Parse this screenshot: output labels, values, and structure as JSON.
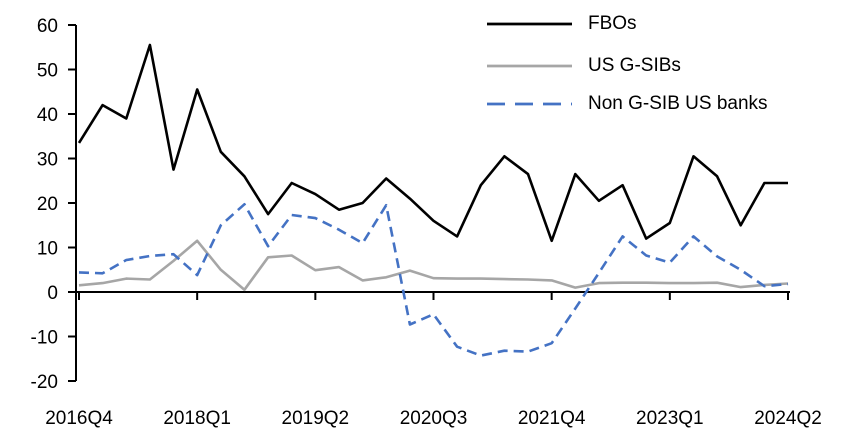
{
  "chart_data": {
    "type": "line",
    "title": "",
    "xlabel": "",
    "ylabel": "",
    "grid": false,
    "ylim": [
      -20,
      60
    ],
    "y_ticks": [
      60,
      50,
      40,
      30,
      20,
      10,
      0,
      -10,
      -20
    ],
    "x_tick_labels": [
      "2016Q4",
      "2018Q1",
      "2019Q2",
      "2020Q3",
      "2021Q4",
      "2023Q1",
      "2024Q2"
    ],
    "x_tick_indices": [
      0,
      5,
      10,
      15,
      20,
      25,
      30
    ],
    "legend_position": "top-right",
    "categories": [
      "2016Q4",
      "2017Q1",
      "2017Q2",
      "2017Q3",
      "2017Q4",
      "2018Q1",
      "2018Q2",
      "2018Q3",
      "2018Q4",
      "2019Q1",
      "2019Q2",
      "2019Q3",
      "2019Q4",
      "2020Q1",
      "2020Q2",
      "2020Q3",
      "2020Q4",
      "2021Q1",
      "2021Q2",
      "2021Q3",
      "2021Q4",
      "2022Q1",
      "2022Q2",
      "2022Q3",
      "2022Q4",
      "2023Q1",
      "2023Q2",
      "2023Q3",
      "2023Q4",
      "2024Q1",
      "2024Q2"
    ],
    "series": [
      {
        "name": "FBOs",
        "color": "#000000",
        "style": "solid",
        "values": [
          33.5,
          42,
          39,
          55.5,
          27.5,
          45.5,
          31.5,
          26,
          17.5,
          24.5,
          22,
          18.5,
          20,
          25.5,
          21,
          16,
          12.5,
          24,
          30.5,
          26.5,
          11.5,
          26.5,
          20.5,
          24,
          12,
          15.5,
          30.5,
          26,
          15,
          24.5,
          24.5
        ]
      },
      {
        "name": "US G-SIBs",
        "color": "#A6A6A6",
        "style": "solid",
        "values": [
          1.5,
          2,
          3,
          2.8,
          7,
          11.5,
          5,
          0.5,
          7.8,
          8.2,
          4.9,
          5.6,
          2.6,
          3.3,
          4.8,
          3.1,
          3,
          3,
          2.9,
          2.8,
          2.6,
          1,
          2,
          2.1,
          2.1,
          2,
          2,
          2.1,
          1.1,
          1.6,
          1.9
        ]
      },
      {
        "name": "Non G-SIB US banks",
        "color": "#4472C4",
        "style": "dashed",
        "values": [
          4.4,
          4.2,
          7.2,
          8.1,
          8.5,
          3.8,
          15,
          19.7,
          10.3,
          17.3,
          16.6,
          14,
          11,
          19.5,
          -7.3,
          -5,
          -12.3,
          -14.3,
          -13.2,
          -13.4,
          -11.5,
          -3.7,
          4.3,
          12.5,
          8.2,
          6.6,
          12.5,
          8,
          5,
          1.3,
          1.8
        ]
      }
    ]
  }
}
